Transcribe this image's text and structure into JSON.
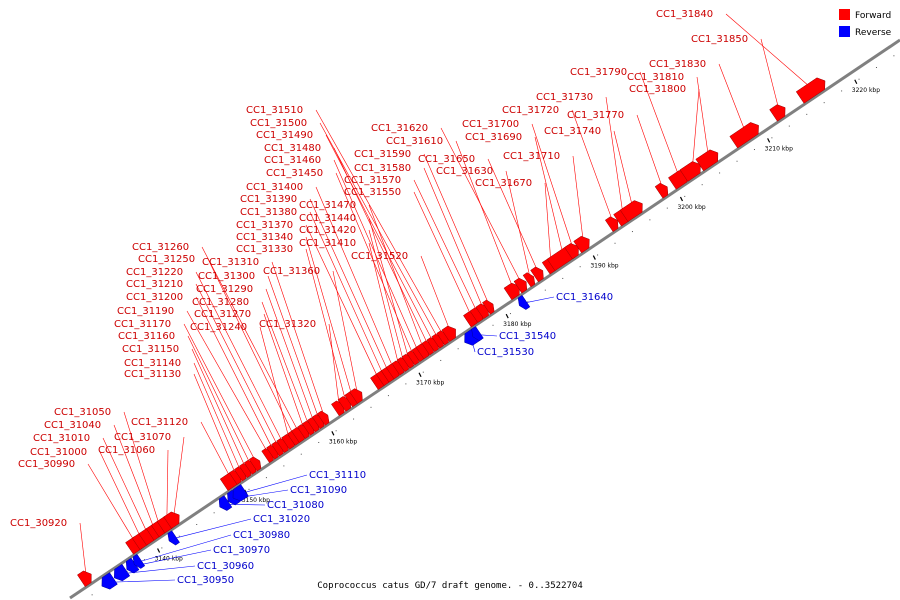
{
  "caption": "Coprococcus catus GD/7 draft genome. - 0..3522704",
  "colors": {
    "forward": "#ff0000",
    "reverse": "#0000ff",
    "axis": "#808080",
    "label_forward": "#cc0000",
    "label_reverse": "#0000cc"
  },
  "legend": {
    "forward": "Forward",
    "reverse": "Reverse"
  },
  "axis_ticks": [
    "3140 kbp",
    "3150 kbp",
    "3160 kbp",
    "3170 kbp",
    "3180 kbp",
    "3190 kbp",
    "3200 kbp",
    "3210 kbp",
    "3220 kbp"
  ],
  "forward_genes": [
    "CC1_30920",
    "CC1_30990",
    "CC1_31000",
    "CC1_31010",
    "CC1_31040",
    "CC1_31050",
    "CC1_31060",
    "CC1_31070",
    "CC1_31120",
    "CC1_31130",
    "CC1_31140",
    "CC1_31150",
    "CC1_31160",
    "CC1_31170",
    "CC1_31190",
    "CC1_31200",
    "CC1_31210",
    "CC1_31220",
    "CC1_31240",
    "CC1_31250",
    "CC1_31260",
    "CC1_31270",
    "CC1_31280",
    "CC1_31290",
    "CC1_31300",
    "CC1_31310",
    "CC1_31320",
    "CC1_31330",
    "CC1_31340",
    "CC1_31360",
    "CC1_31370",
    "CC1_31380",
    "CC1_31390",
    "CC1_31400",
    "CC1_31410",
    "CC1_31420",
    "CC1_31440",
    "CC1_31450",
    "CC1_31460",
    "CC1_31470",
    "CC1_31480",
    "CC1_31490",
    "CC1_31500",
    "CC1_31510",
    "CC1_31520",
    "CC1_31550",
    "CC1_31570",
    "CC1_31580",
    "CC1_31590",
    "CC1_31610",
    "CC1_31620",
    "CC1_31630",
    "CC1_31650",
    "CC1_31670",
    "CC1_31690",
    "CC1_31700",
    "CC1_31710",
    "CC1_31720",
    "CC1_31730",
    "CC1_31740",
    "CC1_31770",
    "CC1_31790",
    "CC1_31800",
    "CC1_31810",
    "CC1_31830",
    "CC1_31840",
    "CC1_31850"
  ],
  "reverse_genes": [
    "CC1_30950",
    "CC1_30960",
    "CC1_30970",
    "CC1_30980",
    "CC1_31020",
    "CC1_31080",
    "CC1_31090",
    "CC1_31110",
    "CC1_31530",
    "CC1_31540",
    "CC1_31640"
  ]
}
